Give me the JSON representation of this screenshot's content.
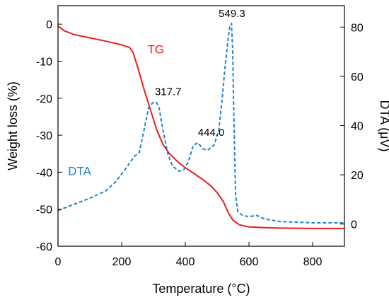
{
  "chart_data": {
    "type": "line",
    "xlabel": "Temperature (°C)",
    "ylabel_left": "Weight loss (%)",
    "ylabel_right": "DTA (μV)",
    "xlim": [
      0,
      900
    ],
    "ylim_left": [
      -60,
      5
    ],
    "ylim_right": [
      -9,
      88.7
    ],
    "x_ticks": [
      0,
      200,
      400,
      600,
      800
    ],
    "y_left_ticks": [
      0,
      -10,
      -20,
      -30,
      -40,
      -50,
      -60
    ],
    "y_right_ticks": [
      0,
      20,
      40,
      60,
      80
    ],
    "grid": false,
    "series": [
      {
        "name": "TG",
        "axis": "left",
        "color": "#ee1c1c",
        "style": "solid",
        "x": [
          0,
          20,
          50,
          100,
          150,
          200,
          225,
          235,
          250,
          270,
          290,
          310,
          330,
          350,
          380,
          400,
          430,
          460,
          480,
          500,
          520,
          535,
          550,
          570,
          600,
          650,
          700,
          800,
          900
        ],
        "y": [
          -0.5,
          -1.8,
          -2.8,
          -3.7,
          -4.6,
          -5.6,
          -6.3,
          -7.5,
          -11.5,
          -17.5,
          -23.0,
          -28.5,
          -32.5,
          -35.0,
          -37.5,
          -38.8,
          -40.5,
          -42.3,
          -43.7,
          -45.5,
          -48.0,
          -51.0,
          -53.0,
          -54.2,
          -54.8,
          -55.0,
          -55.1,
          -55.2,
          -55.2
        ]
      },
      {
        "name": "DTA",
        "axis": "right",
        "color": "#1f83c9",
        "style": "dashed",
        "x": [
          0,
          50,
          100,
          150,
          180,
          210,
          240,
          255,
          270,
          285,
          300,
          310,
          318,
          330,
          345,
          360,
          380,
          395,
          410,
          425,
          440,
          455,
          470,
          490,
          505,
          515,
          525,
          535,
          540,
          545,
          549,
          553,
          558,
          565,
          580,
          600,
          625,
          650,
          700,
          800,
          900
        ],
        "y": [
          5.5,
          8.0,
          10.5,
          13.5,
          17.0,
          22.0,
          27.5,
          29.0,
          38.0,
          47.5,
          49.5,
          49.3,
          47.0,
          38.0,
          28.5,
          23.5,
          21.5,
          22.0,
          25.5,
          32.0,
          33.0,
          30.5,
          30.0,
          32.0,
          38.0,
          50.0,
          64.0,
          76.0,
          80.5,
          81.5,
          70.0,
          40.0,
          12.0,
          5.0,
          3.5,
          3.0,
          3.5,
          2.0,
          1.0,
          0.5,
          0.5
        ]
      }
    ],
    "annotations": [
      {
        "text": "317.7",
        "x": 317.7,
        "y": 49.5,
        "axis": "right"
      },
      {
        "text": "444.0",
        "x": 444.0,
        "y": 33.0,
        "axis": "right"
      },
      {
        "text": "549.3",
        "x": 549.3,
        "y": 81.5,
        "axis": "right"
      }
    ],
    "series_labels": [
      {
        "text": "TG",
        "series": "TG",
        "anchor_x": 250,
        "anchor_y": -7.5
      },
      {
        "text": "DTA",
        "series": "DTA",
        "anchor_x": 165,
        "anchor_y": 21
      }
    ]
  }
}
